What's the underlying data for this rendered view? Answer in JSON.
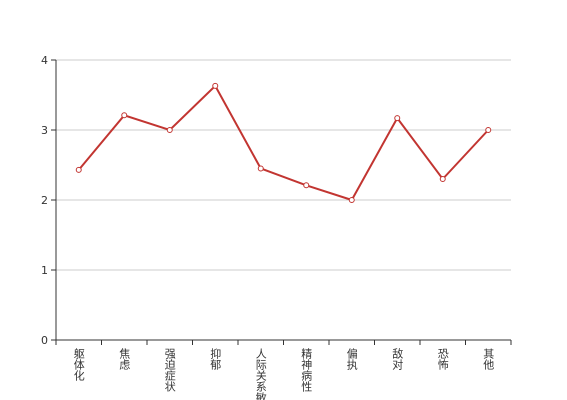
{
  "chart_data": {
    "type": "line",
    "categories": [
      "躯体化",
      "焦虑",
      "强迫症状",
      "抑郁",
      "人际关系敏感",
      "精神病性",
      "偏执",
      "敌对",
      "恐怖",
      "其他"
    ],
    "series": [
      {
        "color": "#c23531",
        "values": [
          2.43,
          3.21,
          3.0,
          3.63,
          2.45,
          2.21,
          2.0,
          3.17,
          2.3,
          3.0
        ]
      }
    ],
    "ylim": [
      0,
      4
    ],
    "yticks": [
      0,
      1,
      2,
      3,
      4
    ],
    "grid": true
  }
}
